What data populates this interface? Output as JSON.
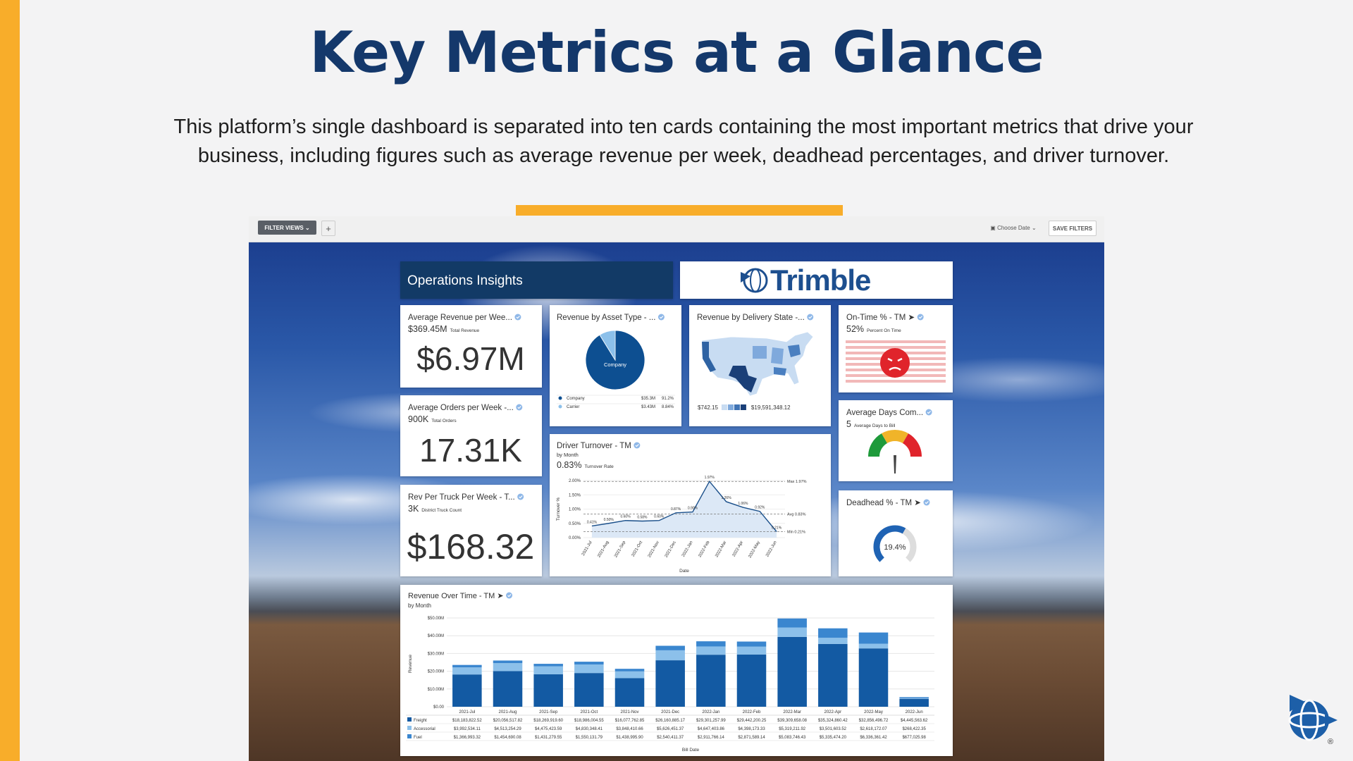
{
  "slide": {
    "title": "Key Metrics at a Glance",
    "description": "This platform’s single dashboard is separated into ten cards containing the most important metrics that drive your business, including figures such as average revenue per week, deadhead percentages, and driver turnover.",
    "brand_mark": "®"
  },
  "toolbar": {
    "filter_views": "FILTER VIEWS",
    "add": "+",
    "choose_date": "Choose Date",
    "save_filters": "SAVE FILTERS"
  },
  "dashboard": {
    "header": "Operations Insights",
    "logo": "Trimble",
    "kpis": [
      {
        "title": "Average Revenue per Wee...",
        "sub_value": "$369.45M",
        "sub_label": "Total Revenue",
        "value": "$6.97M"
      },
      {
        "title": "Average Orders per Week -...",
        "sub_value": "900K",
        "sub_label": "Total Orders",
        "value": "17.31K"
      },
      {
        "title": "Rev Per Truck Per Week - T...",
        "sub_value": "3K",
        "sub_label": "District Truck Count",
        "value": "$168.32"
      }
    ],
    "asset_type": {
      "title": "Revenue by Asset Type - ...",
      "center_label": "Company",
      "slices": [
        {
          "name": "Company",
          "amount": "$35.3M",
          "value": 91.2,
          "value_label": "91.2%",
          "color": "#0d4f91"
        },
        {
          "name": "Carrier",
          "amount": "$3.43M",
          "value": 8.84,
          "value_label": "8.84%",
          "color": "#8cc0ea"
        }
      ]
    },
    "delivery_state": {
      "title": "Revenue by Delivery State -...",
      "legend_min": "$742.15",
      "legend_max": "$19,591,348.12"
    },
    "on_time": {
      "title": "On-Time % - TM ➤",
      "sub_value": "52%",
      "sub_label": "Percent On Time"
    },
    "avg_days": {
      "title": "Average Days Com...",
      "sub_value": "5",
      "sub_label": "Average Days to Bill"
    },
    "deadhead": {
      "title": "Deadhead % - TM ➤",
      "value": "19.4%"
    },
    "driver_turnover": {
      "title": "Driver Turnover - TM",
      "subtitle": "by Month",
      "sub_value": "0.83%",
      "sub_label": "Turnover Rate",
      "y_label": "Turnover %",
      "x_label": "Date",
      "categories": [
        "2021-Jul",
        "2021-Aug",
        "2021-Sep",
        "2021-Oct",
        "2021-Nov",
        "2021-Dec",
        "2022-Jan",
        "2022-Feb",
        "2022-Mar",
        "2022-Apr",
        "2022-May",
        "2022-Jun"
      ],
      "values": [
        0.41,
        0.5,
        0.6,
        0.58,
        0.6,
        0.87,
        0.9,
        1.97,
        1.26,
        1.06,
        0.92,
        0.21
      ],
      "value_labels": [
        "0.41%",
        "0.50%",
        "0.60%",
        "0.58%",
        "0.60%",
        "0.87%",
        "0.90%",
        "1.97%",
        "1.26%",
        "1.06%",
        "0.92%",
        "0.21%"
      ],
      "color": "#1a4f8a",
      "ylim": [
        0,
        2
      ],
      "yticks": [
        {
          "value": 0,
          "label": "0.00%"
        },
        {
          "value": 0.5,
          "label": "0.50%"
        },
        {
          "value": 1,
          "label": "1.00%"
        },
        {
          "value": 1.5,
          "label": "1.50%"
        },
        {
          "value": 2,
          "label": "2.00%"
        }
      ],
      "reference_lines": [
        {
          "value": 1.97,
          "label": "Max 1.97%"
        },
        {
          "value": 0.83,
          "label": "Avg 0.83%"
        },
        {
          "value": 0.21,
          "label": "Min 0.21%"
        }
      ]
    },
    "revenue_over_time": {
      "title": "Revenue Over Time - TM ➤",
      "subtitle": "by Month",
      "y_label": "Revenue",
      "x_label": "Bill Date",
      "categories": [
        "2021-Jul",
        "2021-Aug",
        "2021-Sep",
        "2021-Oct",
        "2021-Nov",
        "2021-Dec",
        "2022-Jan",
        "2022-Feb",
        "2022-Mar",
        "2022-Apr",
        "2022-May",
        "2022-Jun"
      ],
      "ylim": [
        0,
        50000000
      ],
      "yticks": [
        {
          "value": 0,
          "label": "$0.00"
        },
        {
          "value": 10000000,
          "label": "$10.00M"
        },
        {
          "value": 20000000,
          "label": "$20.00M"
        },
        {
          "value": 30000000,
          "label": "$30.00M"
        },
        {
          "value": 40000000,
          "label": "$40.00M"
        },
        {
          "value": 50000000,
          "label": "$50.00M"
        }
      ],
      "series": [
        {
          "name": "Freight",
          "color": "#135aa3",
          "values": [
            18183822.52,
            20056517.82,
            18269919.6,
            18986004.55,
            16077762.85,
            26160885.17,
            29301257.99,
            29442200.25,
            39309658.08,
            35324860.42,
            32856496.72,
            4445563.62
          ],
          "value_labels": [
            "$18,183,822.52",
            "$20,056,517.82",
            "$18,269,919.60",
            "$18,986,004.55",
            "$16,077,762.85",
            "$26,160,885.17",
            "$29,301,257.99",
            "$29,442,200.25",
            "$39,309,658.08",
            "$35,324,860.42",
            "$32,856,496.72",
            "$4,445,563.62"
          ]
        },
        {
          "name": "Accessorial",
          "color": "#8cc0ea",
          "values": [
            3992534.11,
            4513254.29,
            4475423.59,
            4830348.41,
            3848410.66,
            5626451.37,
            4647403.86,
            4398173.33,
            5319211.92,
            3501603.52,
            2618172.07,
            268422.35
          ],
          "value_labels": [
            "$3,992,534.11",
            "$4,513,254.29",
            "$4,475,423.59",
            "$4,830,348.41",
            "$3,848,410.66",
            "$5,626,451.37",
            "$4,647,403.86",
            "$4,398,173.33",
            "$5,319,211.92",
            "$3,501,603.52",
            "$2,618,172.07",
            "$268,422.35"
          ]
        },
        {
          "name": "Fuel",
          "color": "#3a86cf",
          "values": [
            1366993.32,
            1454690.08,
            1431279.55,
            1550131.79,
            1438995.9,
            2540411.37,
            2911766.14,
            2871589.14,
            5083746.43,
            5335474.2,
            6336361.42,
            677025.98
          ],
          "value_labels": [
            "$1,366,993.32",
            "$1,454,690.08",
            "$1,431,279.55",
            "$1,550,131.79",
            "$1,438,995.90",
            "$2,540,411.37",
            "$2,911,766.14",
            "$2,871,589.14",
            "$5,083,746.43",
            "$5,335,474.20",
            "$6,336,361.42",
            "$677,025.98"
          ]
        }
      ]
    }
  }
}
